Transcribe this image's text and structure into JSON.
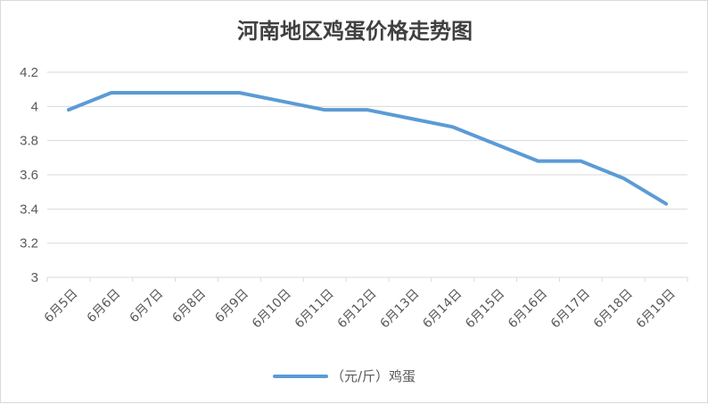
{
  "chart_data": {
    "type": "line",
    "title": "河南地区鸡蛋价格走势图",
    "xlabel": "",
    "ylabel": "",
    "categories": [
      "6月5日",
      "6月6日",
      "6月7日",
      "6月8日",
      "6月9日",
      "6月10日",
      "6月11日",
      "6月12日",
      "6月13日",
      "6月14日",
      "6月15日",
      "6月16日",
      "6月17日",
      "6月18日",
      "6月19日"
    ],
    "series": [
      {
        "name": "（元/斤）鸡蛋",
        "values": [
          3.98,
          4.08,
          4.08,
          4.08,
          4.08,
          4.03,
          3.98,
          3.98,
          3.93,
          3.88,
          3.78,
          3.68,
          3.68,
          3.58,
          3.43
        ]
      }
    ],
    "ylim": [
      3,
      4.2
    ],
    "yticks": [
      "3",
      "3.2",
      "3.4",
      "3.6",
      "3.8",
      "4",
      "4.2"
    ],
    "grid": true,
    "legend": "bottom",
    "line_color": "#5b9bd5",
    "grid_color": "#d9d9d9"
  }
}
